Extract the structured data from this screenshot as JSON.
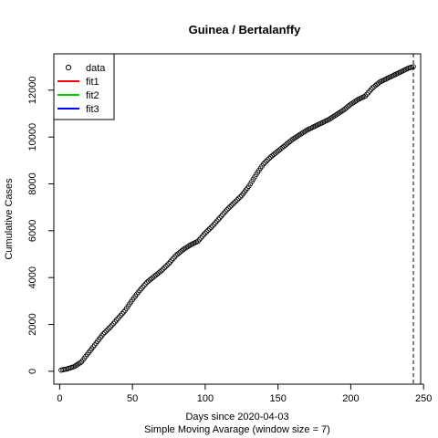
{
  "chart_data": {
    "type": "scatter",
    "title": "Guinea / Bertalanffy",
    "xlabel": "Days since 2020-04-03",
    "subtitle": "Simple Moving Avarage (window size = 7)",
    "ylabel": "Cumulative Cases",
    "xlim": [
      -4,
      248
    ],
    "ylim": [
      -550,
      13550
    ],
    "x_ticks": [
      "0",
      "50",
      "100",
      "150",
      "200",
      "250"
    ],
    "x_tick_values": [
      0,
      50,
      100,
      150,
      200,
      250
    ],
    "y_ticks": [
      "0",
      "2000",
      "4000",
      "6000",
      "8000",
      "10000",
      "12000"
    ],
    "y_tick_values": [
      0,
      2000,
      4000,
      6000,
      8000,
      10000,
      12000
    ],
    "grid": false,
    "legend_position": "top-left",
    "legend": [
      {
        "label": "data",
        "kind": "point",
        "color": "#000000"
      },
      {
        "label": "fit1",
        "kind": "line",
        "color": "#ff0000"
      },
      {
        "label": "fit2",
        "kind": "line",
        "color": "#00cd00"
      },
      {
        "label": "fit3",
        "kind": "line",
        "color": "#0000ff"
      }
    ],
    "vline": {
      "x": 243,
      "style": "dashed",
      "color": "#000000"
    },
    "series": [
      {
        "name": "data",
        "marker": "open-circle",
        "x": [
          1,
          5,
          10,
          15,
          20,
          25,
          30,
          35,
          40,
          45,
          50,
          55,
          60,
          65,
          70,
          75,
          80,
          85,
          90,
          95,
          100,
          105,
          110,
          115,
          120,
          125,
          130,
          135,
          140,
          145,
          150,
          155,
          160,
          165,
          170,
          175,
          180,
          185,
          190,
          195,
          200,
          205,
          210,
          215,
          220,
          225,
          230,
          235,
          240,
          243
        ],
        "y": [
          50,
          100,
          200,
          400,
          800,
          1200,
          1600,
          1900,
          2250,
          2600,
          3050,
          3450,
          3800,
          4050,
          4300,
          4600,
          4950,
          5200,
          5400,
          5550,
          5900,
          6200,
          6550,
          6900,
          7200,
          7500,
          7900,
          8400,
          8850,
          9150,
          9400,
          9650,
          9900,
          10100,
          10300,
          10450,
          10600,
          10750,
          10950,
          11150,
          11400,
          11600,
          11750,
          12100,
          12350,
          12500,
          12650,
          12800,
          12950,
          13000
        ]
      }
    ]
  }
}
